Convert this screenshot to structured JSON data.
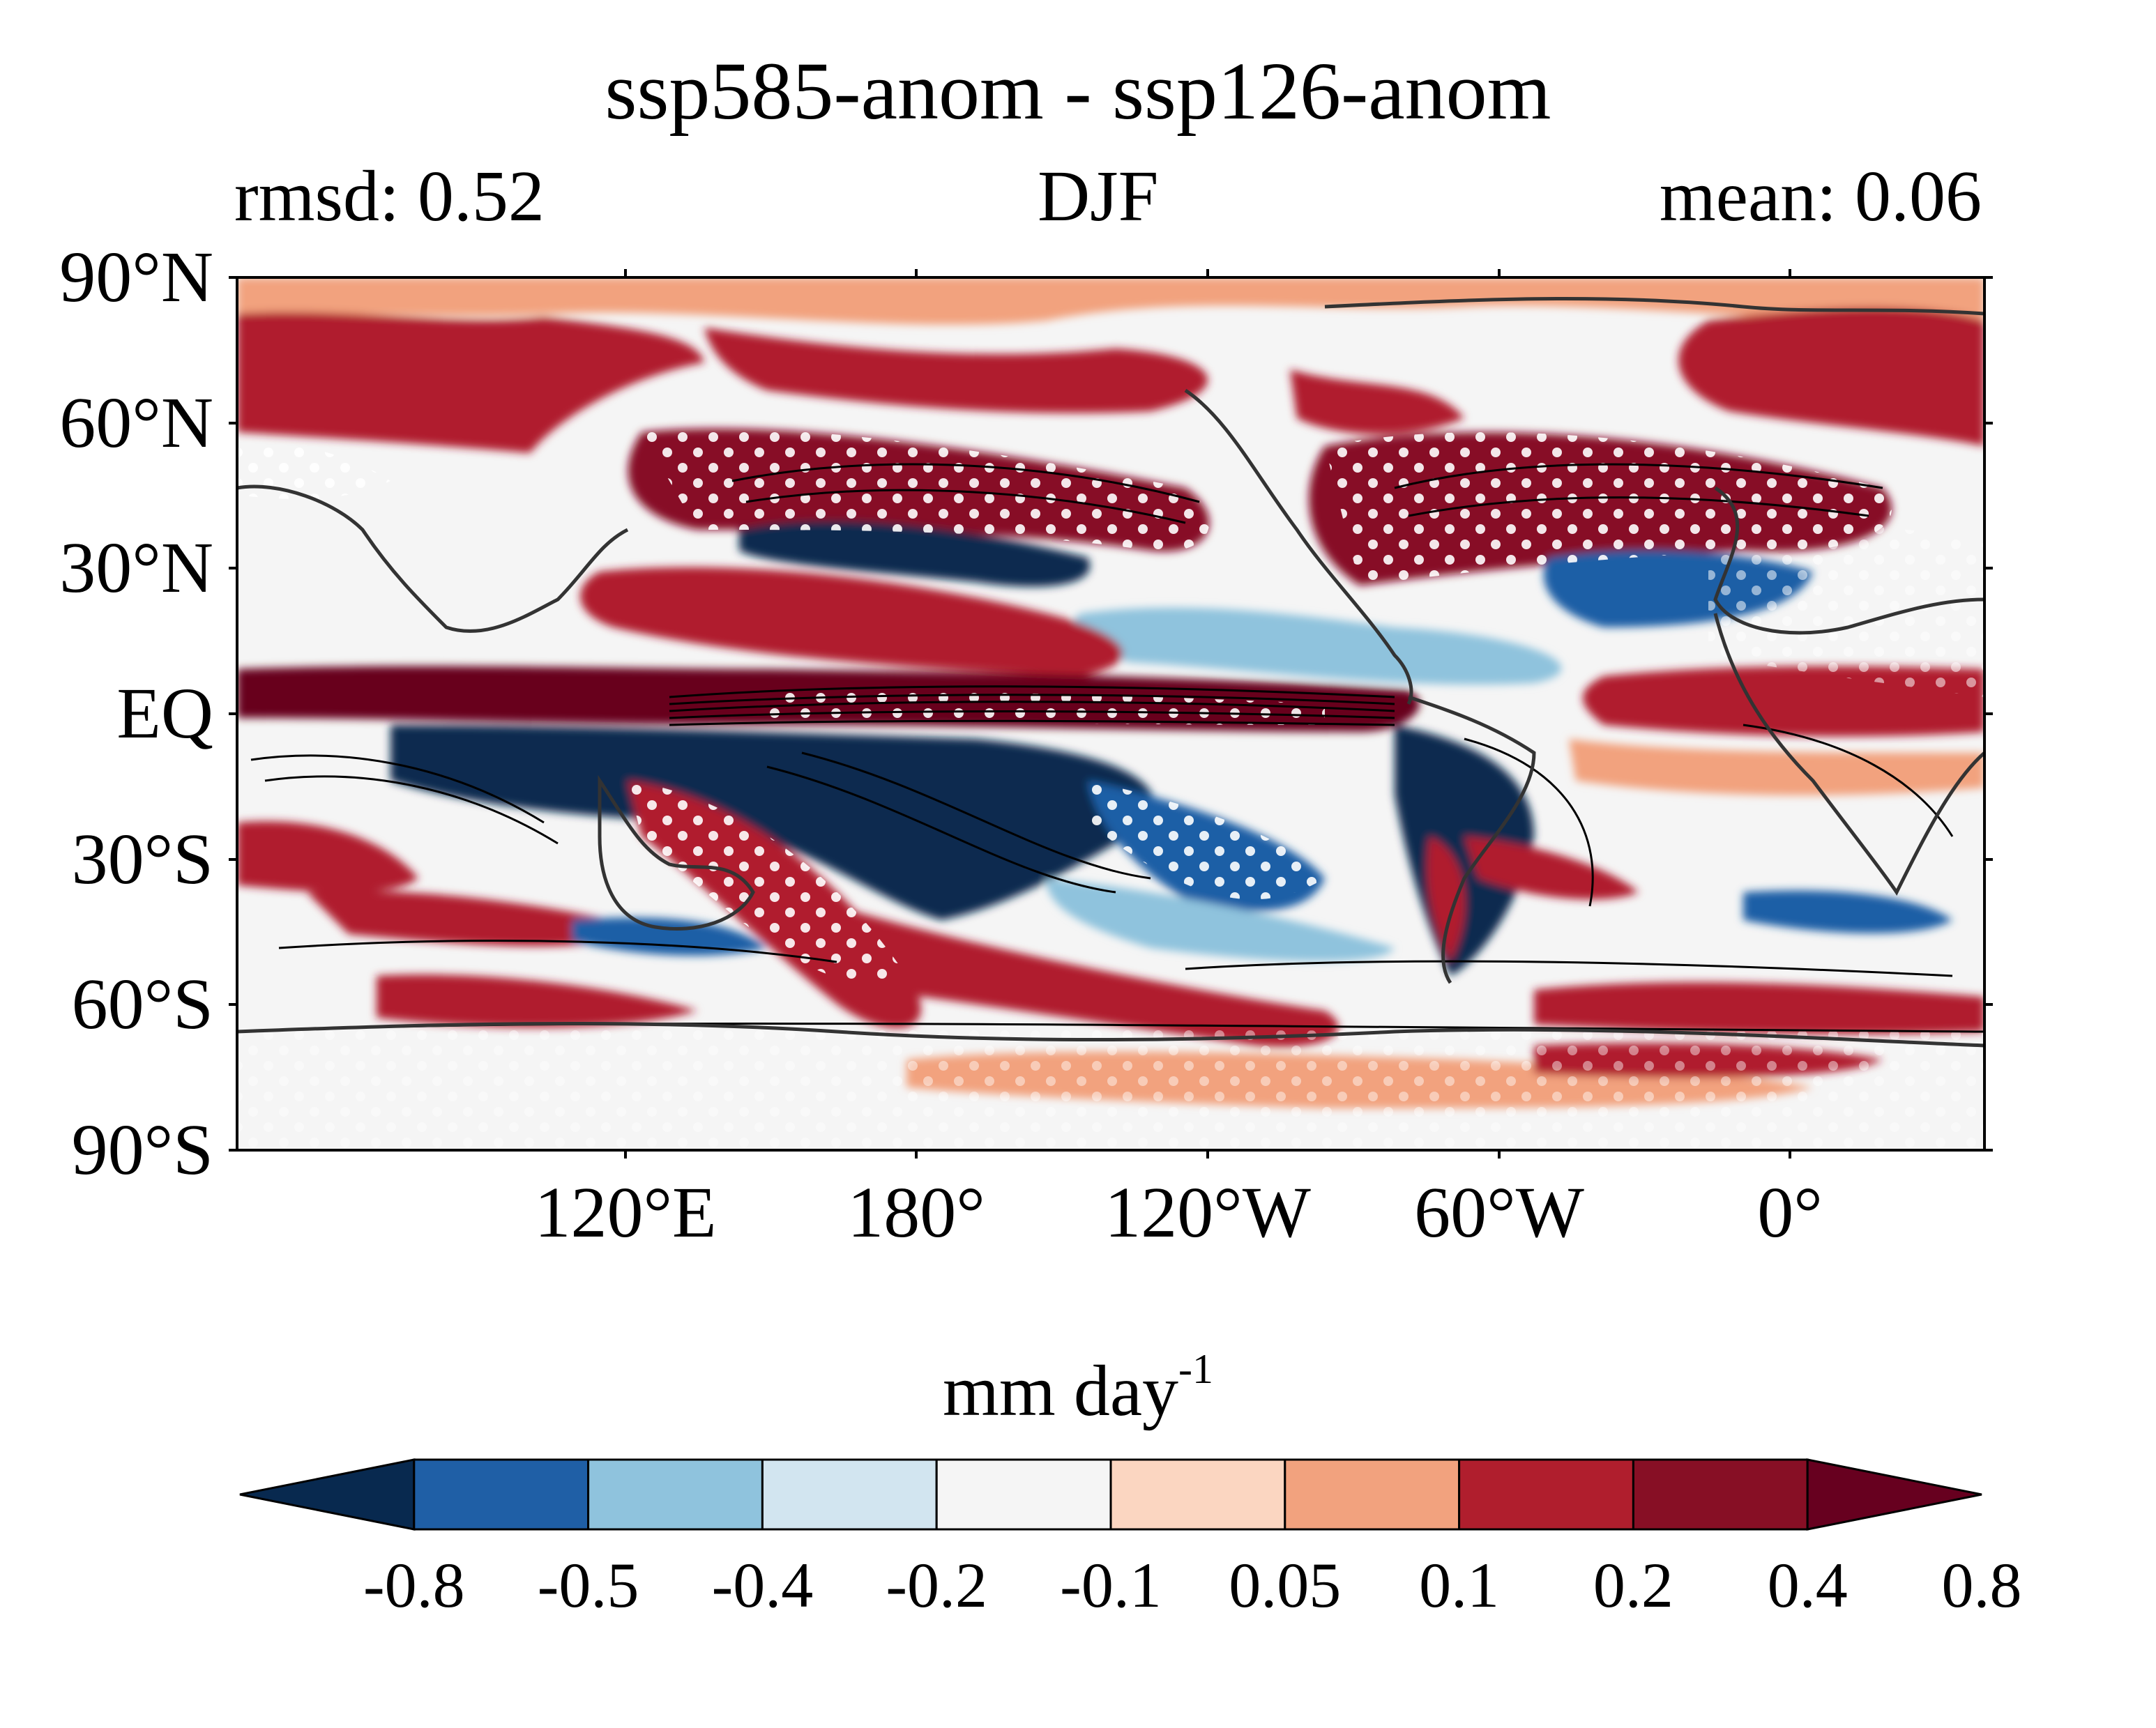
{
  "figure": {
    "title": "ssp585-anom - ssp126-anom",
    "subtitle_left": "rmsd: 0.52",
    "subtitle_center": "DJF",
    "subtitle_right": "mean: 0.06"
  },
  "map": {
    "type": "filled-contour-map",
    "projection": "equirectangular",
    "central_longitude": 150,
    "lat_ticks": [
      "90°N",
      "60°N",
      "30°N",
      "EQ",
      "30°S",
      "60°S",
      "90°S"
    ],
    "lat_values": [
      90,
      60,
      30,
      0,
      -30,
      -60,
      -90
    ],
    "lon_ticks": [
      "120°E",
      "180°",
      "120°W",
      "60°W",
      "0°"
    ],
    "lon_values": [
      120,
      180,
      240,
      300,
      360
    ],
    "stippling": "white dots",
    "overlay": "black contour lines and coastlines"
  },
  "colorbar": {
    "title": "mm day",
    "title_superscript": "-1",
    "ticks": [
      "-0.8",
      "-0.5",
      "-0.4",
      "-0.2",
      "-0.1",
      "0.05",
      "0.1",
      "0.2",
      "0.4",
      "0.8"
    ],
    "colors": [
      "#08294f",
      "#1f5fa6",
      "#8fc3dd",
      "#d2e5f0",
      "#f5f5f5",
      "#fbd6c1",
      "#f2a27e",
      "#b01e2d",
      "#870f25",
      "#67001f"
    ],
    "extend": "both"
  }
}
